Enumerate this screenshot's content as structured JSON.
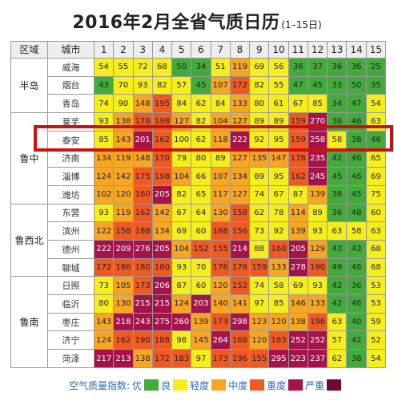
{
  "title": "2016年2月全省气质日历",
  "subtitle": "(1–15日)",
  "colors": {
    "优": "#43aa3c",
    "良": "#f6ee1c",
    "轻度": "#f6a623",
    "中度": "#ef5a24",
    "重度": "#a4144a",
    "严重": "#6e0a2c"
  },
  "legend": {
    "title": "空气质量指数:",
    "items": [
      {
        "label": "优",
        "level": "优"
      },
      {
        "label": "良",
        "level": "良"
      },
      {
        "label": "轻度",
        "level": "轻度"
      },
      {
        "label": "中度",
        "level": "中度"
      },
      {
        "label": "重度",
        "level": "重度"
      },
      {
        "label": "严重",
        "level": "严重"
      }
    ]
  },
  "chart_data": {
    "type": "heatmap",
    "title": "2016年2月全省气质日历",
    "subtitle": "(1–15日)",
    "region_header": "区域",
    "city_header": "城市",
    "days": [
      "1",
      "2",
      "3",
      "4",
      "5",
      "6",
      "7",
      "8",
      "9",
      "10",
      "11",
      "12",
      "13",
      "14",
      "15"
    ],
    "highlight_city": "泰安",
    "regions": [
      {
        "name": "半岛",
        "cities": [
          {
            "name": "威海",
            "values": [
              54,
              55,
              72,
              68,
              50,
              34,
              51,
              119,
              69,
              56,
              36,
              37,
              36,
              36,
              25
            ]
          },
          {
            "name": "烟台",
            "values": [
              43,
              70,
              93,
              82,
              57,
              45,
              107,
              172,
              82,
              55,
              47,
              45,
              33,
              50,
              35
            ]
          },
          {
            "name": "青岛",
            "values": [
              74,
              90,
              148,
              195,
              84,
              62,
              84,
              133,
              80,
              61,
              67,
              85,
              34,
              47,
              54
            ]
          }
        ]
      },
      {
        "name": "鲁中",
        "cities": [
          {
            "name": "莱芜",
            "values": [
              93,
              138,
              176,
              198,
              127,
              82,
              104,
              127,
              89,
              89,
              159,
              270,
              36,
              46,
              63
            ]
          },
          {
            "name": "泰安",
            "values": [
              85,
              143,
              201,
              162,
              100,
              62,
              118,
              222,
              92,
              95,
              159,
              258,
              58,
              38,
              46
            ]
          },
          {
            "name": "济南",
            "values": [
              134,
              119,
              148,
              170,
              79,
              80,
              89,
              127,
              135,
              147,
              178,
              235,
              42,
              46,
              65
            ]
          },
          {
            "name": "淄博",
            "values": [
              124,
              142,
              175,
              198,
              104,
              66,
              107,
              134,
              89,
              95,
              162,
              245,
              45,
              46,
              69
            ]
          },
          {
            "name": "潍坊",
            "values": [
              102,
              120,
              160,
              205,
              82,
              65,
              117,
              127,
              74,
              67,
              87,
              139,
              38,
              45,
              75
            ]
          }
        ]
      },
      {
        "name": "鲁西北",
        "cities": [
          {
            "name": "东营",
            "values": [
              93,
              119,
              162,
              142,
              67,
              64,
              130,
              158,
              62,
              78,
              114,
              89,
              36,
              48,
              60
            ]
          },
          {
            "name": "滨州",
            "values": [
              122,
              158,
              188,
              134,
              69,
              60,
              168,
              156,
              73,
              92,
              139,
              93,
              63,
              58,
              63
            ]
          },
          {
            "name": "德州",
            "values": [
              222,
              209,
              276,
              205,
              104,
              152,
              155,
              214,
              88,
              160,
              205,
              129,
              43,
              43,
              68
            ]
          },
          {
            "name": "聊城",
            "values": [
              172,
              186,
              180,
              180,
              93,
              70,
              176,
              176,
              159,
              133,
              278,
              190,
              49,
              46,
              68
            ]
          }
        ]
      },
      {
        "name": "鲁南",
        "cities": [
          {
            "name": "日照",
            "values": [
              73,
              105,
              173,
              206,
              87,
              60,
              120,
              152,
              74,
              58,
              69,
              93,
              42,
              36,
              53
            ]
          },
          {
            "name": "临沂",
            "values": [
              80,
              130,
              215,
              215,
              124,
              203,
              140,
              141,
              97,
              85,
              146,
              133,
              42,
              46,
              53
            ]
          },
          {
            "name": "枣庄",
            "values": [
              143,
              218,
              243,
              275,
              260,
              139,
              173,
              298,
              123,
              120,
              138,
              196,
              63,
              40,
              59
            ]
          },
          {
            "name": "济宁",
            "values": [
              124,
              162,
              190,
              188,
              98,
              145,
              264,
              168,
              120,
              183,
              252,
              252,
              57,
              42,
              52
            ]
          },
          {
            "name": "菏泽",
            "values": [
              217,
              213,
              138,
              172,
              183,
              97,
              173,
              196,
              155,
              295,
              223,
              237,
              62,
              38,
              54
            ]
          }
        ]
      }
    ]
  }
}
